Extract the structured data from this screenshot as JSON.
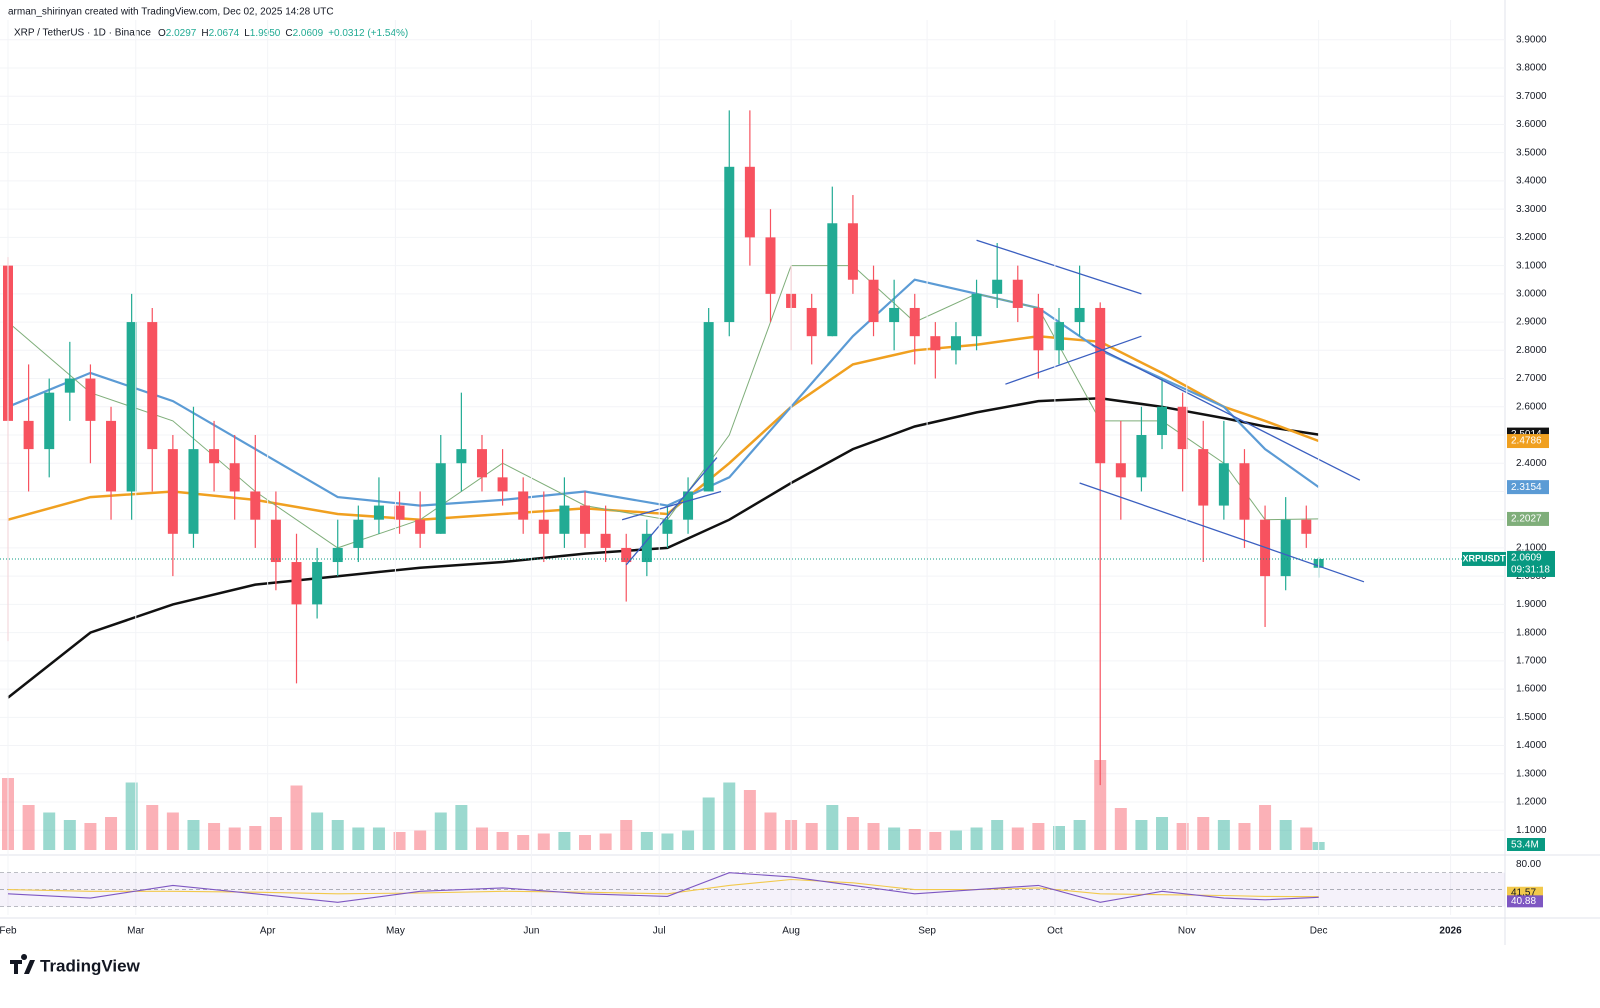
{
  "header": {
    "credit": "arman_shirinyan created with TradingView.com, Dec 02, 2025 14:28 UTC",
    "symbol": "XRP / TetherUS · 1D · Binance",
    "quote": [
      [
        "O",
        "2.0297"
      ],
      [
        "H",
        "2.0674"
      ],
      [
        "L",
        "1.9950"
      ],
      [
        "C",
        "2.0609"
      ]
    ],
    "change": "+0.0312 (+1.54%)"
  },
  "chart_data": {
    "type": "candlestick",
    "x": [
      0,
      5,
      10,
      15,
      20,
      25,
      30,
      35,
      40,
      45,
      50,
      55,
      60,
      65,
      70,
      75,
      80,
      85,
      90,
      95,
      100,
      105,
      110,
      115,
      120,
      125,
      130,
      135,
      140,
      145,
      150,
      155,
      160,
      165,
      170,
      175,
      180,
      185,
      190,
      195,
      200,
      205,
      210,
      215,
      220,
      225,
      230,
      235,
      240,
      245,
      250,
      255,
      260,
      265,
      270,
      275,
      280,
      285,
      290,
      295,
      300,
      305,
      310,
      315,
      318
    ],
    "open": [
      3.1,
      2.55,
      2.45,
      2.65,
      2.7,
      2.55,
      2.3,
      2.9,
      2.45,
      2.15,
      2.45,
      2.4,
      2.3,
      2.2,
      2.05,
      1.9,
      2.05,
      2.1,
      2.2,
      2.25,
      2.2,
      2.15,
      2.4,
      2.45,
      2.35,
      2.3,
      2.2,
      2.15,
      2.25,
      2.15,
      2.1,
      2.05,
      2.15,
      2.2,
      2.3,
      2.9,
      3.45,
      3.2,
      3.0,
      2.95,
      2.85,
      3.25,
      3.05,
      2.9,
      2.95,
      2.85,
      2.8,
      2.85,
      3.0,
      3.05,
      2.95,
      2.8,
      2.9,
      2.95,
      2.4,
      2.35,
      2.5,
      2.6,
      2.45,
      2.25,
      2.4,
      2.2,
      2.0,
      2.2,
      2.0297
    ],
    "high": [
      3.13,
      2.75,
      2.7,
      2.83,
      2.75,
      2.6,
      3.0,
      2.95,
      2.5,
      2.6,
      2.55,
      2.5,
      2.5,
      2.3,
      2.15,
      2.1,
      2.2,
      2.25,
      2.35,
      2.3,
      2.3,
      2.5,
      2.65,
      2.5,
      2.45,
      2.35,
      2.3,
      2.35,
      2.3,
      2.25,
      2.15,
      2.2,
      2.25,
      2.35,
      2.95,
      3.65,
      3.65,
      3.3,
      3.1,
      3.0,
      3.38,
      3.35,
      3.1,
      3.05,
      3.0,
      2.9,
      2.9,
      3.05,
      3.18,
      3.1,
      3.0,
      2.95,
      3.1,
      2.97,
      2.55,
      2.6,
      2.7,
      2.65,
      2.55,
      2.55,
      2.45,
      2.25,
      2.28,
      2.25,
      2.0674
    ],
    "low": [
      1.77,
      2.3,
      2.35,
      2.55,
      2.4,
      2.2,
      2.2,
      2.3,
      2.0,
      2.1,
      2.3,
      2.2,
      2.1,
      1.95,
      1.62,
      1.85,
      2.0,
      2.05,
      2.15,
      2.15,
      2.1,
      2.15,
      2.3,
      2.3,
      2.25,
      2.15,
      2.05,
      2.1,
      2.1,
      2.05,
      1.91,
      2.0,
      2.1,
      2.15,
      2.3,
      2.85,
      3.1,
      2.9,
      2.8,
      2.75,
      2.85,
      3.0,
      2.85,
      2.8,
      2.75,
      2.7,
      2.75,
      2.8,
      2.95,
      2.9,
      2.7,
      2.75,
      2.85,
      1.26,
      2.2,
      2.3,
      2.45,
      2.3,
      2.05,
      2.2,
      2.1,
      1.82,
      1.95,
      2.1,
      1.995
    ],
    "close": [
      2.55,
      2.45,
      2.65,
      2.7,
      2.55,
      2.3,
      2.9,
      2.45,
      2.15,
      2.45,
      2.4,
      2.3,
      2.2,
      2.05,
      1.9,
      2.05,
      2.1,
      2.2,
      2.25,
      2.2,
      2.15,
      2.4,
      2.45,
      2.35,
      2.3,
      2.2,
      2.15,
      2.25,
      2.15,
      2.1,
      2.05,
      2.15,
      2.2,
      2.3,
      2.9,
      3.45,
      3.2,
      3.0,
      2.95,
      2.85,
      3.25,
      3.05,
      2.9,
      2.95,
      2.85,
      2.8,
      2.85,
      3.0,
      3.05,
      2.95,
      2.8,
      2.9,
      2.95,
      2.4,
      2.35,
      2.5,
      2.6,
      2.45,
      2.25,
      2.4,
      2.2,
      2.0,
      2.2,
      2.15,
      2.0609
    ],
    "up_color": "#22ab94",
    "down_color": "#f7525f",
    "xlim": [
      0,
      362
    ],
    "ylim": [
      1.03,
      3.97
    ],
    "xticks": [
      {
        "value": 0,
        "label": "Feb"
      },
      {
        "value": 31,
        "label": "Mar"
      },
      {
        "value": 63,
        "label": "Apr"
      },
      {
        "value": 94,
        "label": "May"
      },
      {
        "value": 127,
        "label": "Jun"
      },
      {
        "value": 158,
        "label": "Jul"
      },
      {
        "value": 190,
        "label": "Aug"
      },
      {
        "value": 223,
        "label": "Sep"
      },
      {
        "value": 254,
        "label": "Oct"
      },
      {
        "value": 286,
        "label": "Nov"
      },
      {
        "value": 318,
        "label": "Dec"
      },
      {
        "value": 350,
        "label": "2026"
      }
    ],
    "yticks": [
      {
        "value": 1.1,
        "label": "1.1000"
      },
      {
        "value": 1.2,
        "label": "1.2000"
      },
      {
        "value": 1.3,
        "label": "1.3000"
      },
      {
        "value": 1.4,
        "label": "1.4000"
      },
      {
        "value": 1.5,
        "label": "1.5000"
      },
      {
        "value": 1.6,
        "label": "1.6000"
      },
      {
        "value": 1.7,
        "label": "1.7000"
      },
      {
        "value": 1.8,
        "label": "1.8000"
      },
      {
        "value": 1.9,
        "label": "1.9000"
      },
      {
        "value": 2.0,
        "label": "2.0000"
      },
      {
        "value": 2.1,
        "label": "2.1000"
      },
      {
        "value": 2.2,
        "label": "2.2000"
      },
      {
        "value": 2.3,
        "label": "2.3000"
      },
      {
        "value": 2.4,
        "label": "2.4000"
      },
      {
        "value": 2.5,
        "label": "2.5000"
      },
      {
        "value": 2.6,
        "label": "2.6000"
      },
      {
        "value": 2.7,
        "label": "2.7000"
      },
      {
        "value": 2.8,
        "label": "2.8000"
      },
      {
        "value": 2.9,
        "label": "2.9000"
      },
      {
        "value": 3.0,
        "label": "3.0000"
      },
      {
        "value": 3.1,
        "label": "3.1000"
      },
      {
        "value": 3.2,
        "label": "3.2000"
      },
      {
        "value": 3.3,
        "label": "3.3000"
      },
      {
        "value": 3.4,
        "label": "3.4000"
      },
      {
        "value": 3.5,
        "label": "3.5000"
      },
      {
        "value": 3.6,
        "label": "3.6000"
      },
      {
        "value": 3.7,
        "label": "3.7000"
      },
      {
        "value": 3.8,
        "label": "3.8000"
      },
      {
        "value": 3.9,
        "label": "3.9000"
      }
    ],
    "volume": {
      "values": [
        480,
        300,
        250,
        200,
        180,
        220,
        450,
        300,
        250,
        200,
        180,
        150,
        160,
        220,
        430,
        250,
        200,
        150,
        150,
        120,
        130,
        250,
        300,
        150,
        120,
        100,
        110,
        120,
        100,
        110,
        200,
        120,
        110,
        130,
        350,
        450,
        400,
        250,
        200,
        180,
        300,
        220,
        180,
        150,
        140,
        120,
        130,
        150,
        200,
        150,
        180,
        160,
        200,
        600,
        280,
        200,
        220,
        180,
        220,
        200,
        180,
        300,
        200,
        150,
        53.4
      ],
      "vlim": [
        0,
        800
      ],
      "last_label": "53.4M"
    },
    "lines": {
      "x": [
        0,
        20,
        40,
        60,
        80,
        100,
        120,
        140,
        160,
        175,
        190,
        205,
        220,
        235,
        250,
        265,
        280,
        295,
        305,
        318
      ],
      "series": [
        {
          "color": "#111111",
          "width": 2.5,
          "values": [
            1.57,
            1.8,
            1.9,
            1.97,
            2.0,
            2.03,
            2.05,
            2.08,
            2.1,
            2.2,
            2.33,
            2.45,
            2.53,
            2.58,
            2.62,
            2.63,
            2.6,
            2.56,
            2.53,
            2.5014
          ]
        },
        {
          "color": "#f0a020",
          "width": 2.5,
          "values": [
            2.2,
            2.28,
            2.3,
            2.27,
            2.22,
            2.2,
            2.22,
            2.24,
            2.22,
            2.4,
            2.6,
            2.75,
            2.8,
            2.82,
            2.85,
            2.83,
            2.72,
            2.6,
            2.55,
            2.4786
          ]
        },
        {
          "color": "#5b9bd5",
          "width": 2.2,
          "values": [
            2.6,
            2.72,
            2.62,
            2.45,
            2.28,
            2.25,
            2.27,
            2.3,
            2.25,
            2.35,
            2.6,
            2.85,
            3.05,
            3.0,
            2.95,
            2.8,
            2.7,
            2.6,
            2.45,
            2.3154
          ]
        },
        {
          "color": "#7fae7a",
          "width": 1,
          "values": [
            2.9,
            2.65,
            2.55,
            2.3,
            2.1,
            2.2,
            2.4,
            2.25,
            2.2,
            2.5,
            3.1,
            3.1,
            2.9,
            3.0,
            2.95,
            2.55,
            2.55,
            2.4,
            2.2,
            2.2027
          ]
        }
      ]
    },
    "trendlines": {
      "color": "#3b5fc0",
      "segments": [
        [
          235,
          3.19,
          275,
          3.0
        ],
        [
          242,
          2.68,
          275,
          2.85
        ],
        [
          263,
          2.82,
          328,
          2.34
        ],
        [
          260,
          2.33,
          329,
          1.98
        ],
        [
          150,
          2.04,
          172,
          2.42
        ],
        [
          149,
          2.2,
          173,
          2.3
        ]
      ]
    },
    "price_badge": {
      "name": "XRPUSDT",
      "countdown": "09:31:18",
      "color": "#089981"
    },
    "rsi": {
      "ylim": [
        20,
        85
      ],
      "yticks": [
        {
          "value": 80,
          "label": "80.00"
        }
      ],
      "levels": [
        30,
        50,
        70
      ],
      "series": [
        {
          "color": "#f2c94c",
          "values": [
            50,
            48,
            48,
            47,
            45,
            46,
            48,
            47,
            45,
            55,
            62,
            58,
            50,
            50,
            52,
            45,
            44,
            43,
            42,
            41.57
          ]
        },
        {
          "color": "#7e57c2",
          "values": [
            45,
            40,
            55,
            45,
            35,
            48,
            52,
            45,
            42,
            70,
            65,
            55,
            45,
            50,
            55,
            35,
            48,
            40,
            38,
            40.88
          ]
        }
      ]
    }
  },
  "logo": "TradingView"
}
